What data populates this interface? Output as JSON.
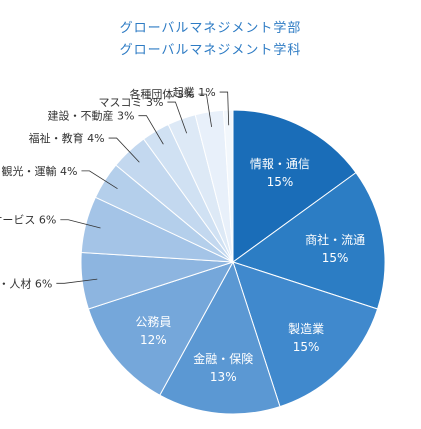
{
  "chart_data": {
    "type": "pie",
    "title_lines": [
      "グローバルマネジメント学部",
      "グローバルマネジメント学科"
    ],
    "slices": [
      {
        "label": "情報・通信",
        "value": 15,
        "value_label": "15%",
        "color": "#1a6db8"
      },
      {
        "label": "商社・流通",
        "value": 15,
        "value_label": "15%",
        "color": "#2c7dc4"
      },
      {
        "label": "製造業",
        "value": 15,
        "value_label": "15%",
        "color": "#4089cd"
      },
      {
        "label": "金融・保険",
        "value": 13,
        "value_label": "13%",
        "color": "#5b98d3"
      },
      {
        "label": "公務員",
        "value": 12,
        "value_label": "12%",
        "color": "#75a7da"
      },
      {
        "label": "コンサル・人材",
        "value": 6,
        "value_label": "6%",
        "color": "#8db5e0"
      },
      {
        "label": "サービス",
        "value": 6,
        "value_label": "6%",
        "color": "#a4c4e7"
      },
      {
        "label": "観光・運輸",
        "value": 4,
        "value_label": "4%",
        "color": "#b4cfeb"
      },
      {
        "label": "福祉・教育",
        "value": 4,
        "value_label": "4%",
        "color": "#c3d8ef"
      },
      {
        "label": "建設・不動産",
        "value": 3,
        "value_label": "3%",
        "color": "#d0e1f3"
      },
      {
        "label": "マスコミ",
        "value": 3,
        "value_label": "3%",
        "color": "#dde9f6"
      },
      {
        "label": "各種団体",
        "value": 3,
        "value_label": "3%",
        "color": "#e8f0fa"
      },
      {
        "label": "起業",
        "value": 1,
        "value_label": "1%",
        "color": "#f2f7fc"
      }
    ],
    "label_text_color_inside": "#ffffff",
    "label_text_color_outside": "#333333",
    "leader_line_color": "#333333"
  }
}
